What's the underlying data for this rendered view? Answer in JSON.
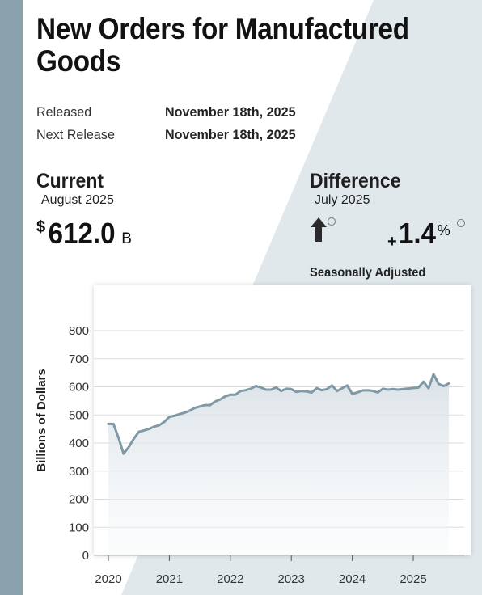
{
  "page": {
    "title": "New Orders for Manufactured Goods",
    "released_label": "Released",
    "released_value": "November 18th, 2025",
    "next_release_label": "Next Release",
    "next_release_value": "November 18th, 2025"
  },
  "current": {
    "heading": "Current",
    "period": "August 2025",
    "currency": "$",
    "value": "612.0",
    "unit": "B"
  },
  "difference": {
    "heading": "Difference",
    "period": "July 2025",
    "direction_icon": "arrow-up-icon",
    "sign": "+",
    "value": "1.4",
    "unit": "%"
  },
  "seasonal_label": "Seasonally Adjusted",
  "colors": {
    "line": "#8099a7",
    "strip": "#8aa2ae",
    "shape": "#e1e8ec"
  },
  "chart_data": {
    "type": "area",
    "ylabel": "Billions of Dollars",
    "xlabel": "",
    "ylim": [
      0,
      800
    ],
    "yticks": [
      0,
      100,
      200,
      300,
      400,
      500,
      600,
      700,
      800
    ],
    "xticks": [
      2020,
      2021,
      2022,
      2023,
      2024,
      2025
    ],
    "xtick_labels": [
      "2020",
      "2021",
      "2022",
      "2023",
      "2024",
      "2025"
    ],
    "grid": true,
    "series": [
      {
        "x": [
          "2020-01",
          "2020-02",
          "2020-03",
          "2020-04",
          "2020-05",
          "2020-06",
          "2020-07",
          "2020-08",
          "2020-09",
          "2020-10",
          "2020-11",
          "2020-12",
          "2021-01",
          "2021-02",
          "2021-03",
          "2021-04",
          "2021-05",
          "2021-06",
          "2021-07",
          "2021-08",
          "2021-09",
          "2021-10",
          "2021-11",
          "2021-12",
          "2022-01",
          "2022-02",
          "2022-03",
          "2022-04",
          "2022-05",
          "2022-06",
          "2022-07",
          "2022-08",
          "2022-09",
          "2022-10",
          "2022-11",
          "2022-12",
          "2023-01",
          "2023-02",
          "2023-03",
          "2023-04",
          "2023-05",
          "2023-06",
          "2023-07",
          "2023-08",
          "2023-09",
          "2023-10",
          "2023-11",
          "2023-12",
          "2024-01",
          "2024-02",
          "2024-03",
          "2024-04",
          "2024-05",
          "2024-06",
          "2024-07",
          "2024-08",
          "2024-09",
          "2024-10",
          "2024-11",
          "2024-12",
          "2025-01",
          "2025-02",
          "2025-03",
          "2025-04",
          "2025-05",
          "2025-06",
          "2025-07",
          "2025-08"
        ],
        "values": [
          468,
          468,
          418,
          362,
          385,
          415,
          440,
          445,
          450,
          458,
          463,
          475,
          493,
          497,
          503,
          508,
          515,
          525,
          530,
          535,
          535,
          548,
          555,
          566,
          572,
          572,
          585,
          588,
          593,
          603,
          598,
          590,
          590,
          598,
          585,
          593,
          592,
          582,
          585,
          584,
          580,
          595,
          588,
          592,
          605,
          585,
          595,
          605,
          575,
          580,
          587,
          588,
          586,
          580,
          593,
          590,
          592,
          590,
          592,
          594,
          596,
          597,
          618,
          595,
          645,
          610,
          603,
          612
        ]
      }
    ]
  }
}
